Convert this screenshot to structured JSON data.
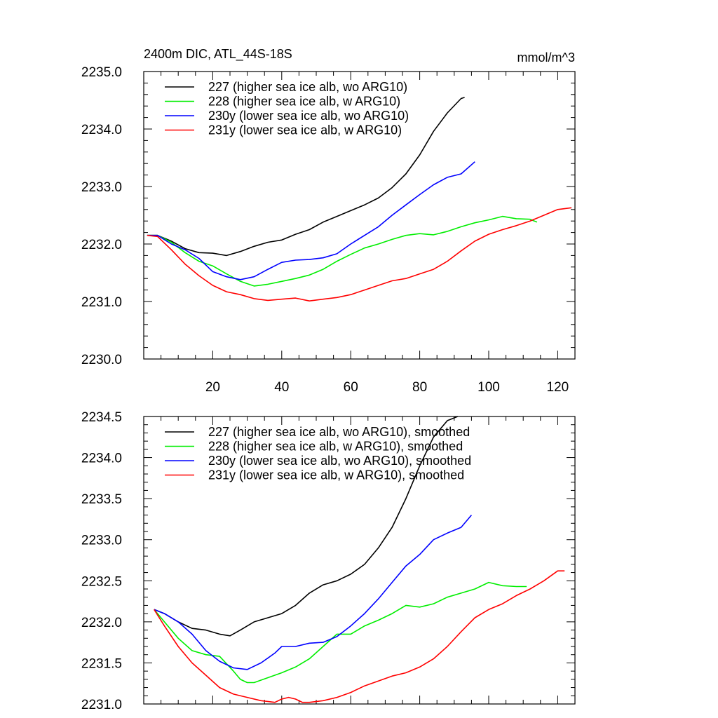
{
  "chart_data": [
    {
      "type": "line",
      "title": "2400m DIC, ATL_44S-18S",
      "units": "mmol/m^3",
      "xlabel": "",
      "ylabel": "",
      "xlim": [
        0,
        125
      ],
      "ylim": [
        2230.0,
        2235.0
      ],
      "xticks": [
        20,
        40,
        60,
        80,
        100,
        120
      ],
      "xtick_labels": [
        "20",
        "40",
        "60",
        "80",
        "100",
        "120"
      ],
      "yticks": [
        2230.0,
        2231.0,
        2232.0,
        2233.0,
        2234.0,
        2235.0
      ],
      "ytick_labels": [
        "2230.0",
        "2231.0",
        "2232.0",
        "2233.0",
        "2234.0",
        "2235.0"
      ],
      "legend_position": "top-left",
      "series": [
        {
          "name": "227 (higher sea ice alb, wo ARG10)",
          "color": "#000000",
          "x": [
            1,
            4,
            8,
            12,
            16,
            20,
            24,
            28,
            32,
            36,
            40,
            44,
            48,
            52,
            56,
            60,
            64,
            68,
            72,
            76,
            80,
            84,
            88,
            92,
            93
          ],
          "y": [
            2232.15,
            2232.15,
            2232.05,
            2231.92,
            2231.85,
            2231.84,
            2231.8,
            2231.87,
            2231.96,
            2232.03,
            2232.07,
            2232.17,
            2232.25,
            2232.38,
            2232.48,
            2232.58,
            2232.68,
            2232.8,
            2232.98,
            2233.22,
            2233.55,
            2233.96,
            2234.28,
            2234.53,
            2234.55
          ]
        },
        {
          "name": "228 (higher sea ice alb, w ARG10)",
          "color": "#00ee00",
          "x": [
            1,
            4,
            8,
            12,
            16,
            20,
            24,
            28,
            32,
            36,
            40,
            44,
            48,
            52,
            56,
            60,
            64,
            68,
            72,
            76,
            80,
            84,
            88,
            92,
            96,
            100,
            104,
            108,
            112,
            114
          ],
          "y": [
            2232.15,
            2232.15,
            2232.03,
            2231.85,
            2231.7,
            2231.62,
            2231.48,
            2231.35,
            2231.27,
            2231.3,
            2231.35,
            2231.4,
            2231.46,
            2231.56,
            2231.7,
            2231.82,
            2231.93,
            2232.0,
            2232.08,
            2232.15,
            2232.18,
            2232.16,
            2232.22,
            2232.3,
            2232.37,
            2232.42,
            2232.48,
            2232.44,
            2232.43,
            2232.38
          ]
        },
        {
          "name": "230y (lower sea ice alb, wo ARG10)",
          "color": "#0000ff",
          "x": [
            1,
            4,
            8,
            12,
            16,
            20,
            24,
            28,
            32,
            36,
            40,
            44,
            48,
            52,
            56,
            60,
            64,
            68,
            72,
            76,
            80,
            84,
            88,
            92,
            96
          ],
          "y": [
            2232.15,
            2232.15,
            2232.0,
            2231.9,
            2231.75,
            2231.52,
            2231.43,
            2231.38,
            2231.43,
            2231.56,
            2231.68,
            2231.72,
            2231.73,
            2231.76,
            2231.83,
            2232.0,
            2232.15,
            2232.3,
            2232.5,
            2232.68,
            2232.86,
            2233.03,
            2233.16,
            2233.22,
            2233.43
          ]
        },
        {
          "name": "231y (lower sea ice alb, w ARG10)",
          "color": "#ff0000",
          "x": [
            1,
            4,
            8,
            12,
            16,
            20,
            24,
            28,
            32,
            36,
            40,
            44,
            48,
            52,
            56,
            60,
            64,
            68,
            72,
            76,
            80,
            84,
            88,
            92,
            96,
            100,
            104,
            108,
            112,
            116,
            120,
            124
          ],
          "y": [
            2232.15,
            2232.13,
            2231.9,
            2231.65,
            2231.45,
            2231.28,
            2231.17,
            2231.12,
            2231.05,
            2231.02,
            2231.04,
            2231.06,
            2231.01,
            2231.04,
            2231.07,
            2231.12,
            2231.2,
            2231.28,
            2231.36,
            2231.4,
            2231.48,
            2231.56,
            2231.7,
            2231.88,
            2232.05,
            2232.17,
            2232.25,
            2232.32,
            2232.4,
            2232.5,
            2232.6,
            2232.63
          ]
        }
      ]
    },
    {
      "type": "line",
      "title": "",
      "xlabel": "",
      "ylabel": "",
      "xlim": [
        0,
        125
      ],
      "ylim": [
        2231.0,
        2234.5
      ],
      "xticks": [
        20,
        40,
        60,
        80,
        100,
        120
      ],
      "xtick_labels": [],
      "yticks": [
        2231.0,
        2231.5,
        2232.0,
        2232.5,
        2233.0,
        2233.5,
        2234.0,
        2234.5
      ],
      "ytick_labels": [
        "2231.0",
        "2231.5",
        "2232.0",
        "2232.5",
        "2233.0",
        "2233.5",
        "2234.0",
        "2234.5"
      ],
      "legend_position": "top-left",
      "series": [
        {
          "name": "227 (higher sea ice alb, wo ARG10), smoothed",
          "color": "#000000",
          "x": [
            3,
            6,
            10,
            14,
            18,
            22,
            25,
            28,
            32,
            36,
            40,
            44,
            48,
            52,
            56,
            60,
            64,
            68,
            72,
            76,
            80,
            84,
            88,
            91
          ],
          "y": [
            2232.15,
            2232.1,
            2232.0,
            2231.92,
            2231.9,
            2231.85,
            2231.83,
            2231.9,
            2232.0,
            2232.05,
            2232.1,
            2232.2,
            2232.35,
            2232.45,
            2232.5,
            2232.58,
            2232.7,
            2232.9,
            2233.15,
            2233.5,
            2233.9,
            2234.25,
            2234.45,
            2234.5
          ]
        },
        {
          "name": "228 (higher sea ice alb, w ARG10), smoothed",
          "color": "#00ee00",
          "x": [
            3,
            6,
            10,
            14,
            18,
            22,
            26,
            28,
            30,
            32,
            36,
            40,
            44,
            48,
            52,
            56,
            60,
            64,
            68,
            72,
            76,
            80,
            84,
            88,
            92,
            96,
            100,
            104,
            108,
            111
          ],
          "y": [
            2232.15,
            2232.0,
            2231.8,
            2231.65,
            2231.6,
            2231.58,
            2231.4,
            2231.3,
            2231.26,
            2231.26,
            2231.32,
            2231.38,
            2231.45,
            2231.55,
            2231.7,
            2231.85,
            2231.85,
            2231.95,
            2232.02,
            2232.1,
            2232.2,
            2232.18,
            2232.22,
            2232.3,
            2232.35,
            2232.4,
            2232.48,
            2232.44,
            2232.43,
            2232.43
          ]
        },
        {
          "name": "230y (lower sea ice alb, wo ARG10), smoothed",
          "color": "#0000ff",
          "x": [
            3,
            6,
            10,
            14,
            18,
            22,
            26,
            30,
            34,
            38,
            40,
            44,
            48,
            52,
            56,
            60,
            64,
            68,
            72,
            76,
            80,
            84,
            88,
            92,
            95
          ],
          "y": [
            2232.15,
            2232.1,
            2232.0,
            2231.85,
            2231.65,
            2231.52,
            2231.44,
            2231.42,
            2231.5,
            2231.62,
            2231.7,
            2231.7,
            2231.74,
            2231.75,
            2231.82,
            2231.95,
            2232.1,
            2232.28,
            2232.48,
            2232.68,
            2232.82,
            2233.0,
            2233.08,
            2233.15,
            2233.3
          ]
        },
        {
          "name": "231y (lower sea ice alb, w ARG10), smoothed",
          "color": "#ff0000",
          "x": [
            3,
            6,
            10,
            14,
            18,
            22,
            26,
            30,
            34,
            38,
            40,
            42,
            44,
            46,
            48,
            52,
            56,
            60,
            64,
            68,
            72,
            76,
            80,
            84,
            88,
            92,
            96,
            100,
            104,
            108,
            112,
            116,
            120,
            122
          ],
          "y": [
            2232.15,
            2231.95,
            2231.7,
            2231.5,
            2231.35,
            2231.2,
            2231.12,
            2231.08,
            2231.04,
            2231.02,
            2231.06,
            2231.08,
            2231.06,
            2231.02,
            2231.02,
            2231.04,
            2231.08,
            2231.14,
            2231.22,
            2231.28,
            2231.34,
            2231.38,
            2231.45,
            2231.55,
            2231.7,
            2231.88,
            2232.05,
            2232.15,
            2232.22,
            2232.32,
            2232.4,
            2232.5,
            2232.62,
            2232.62
          ]
        }
      ]
    }
  ]
}
